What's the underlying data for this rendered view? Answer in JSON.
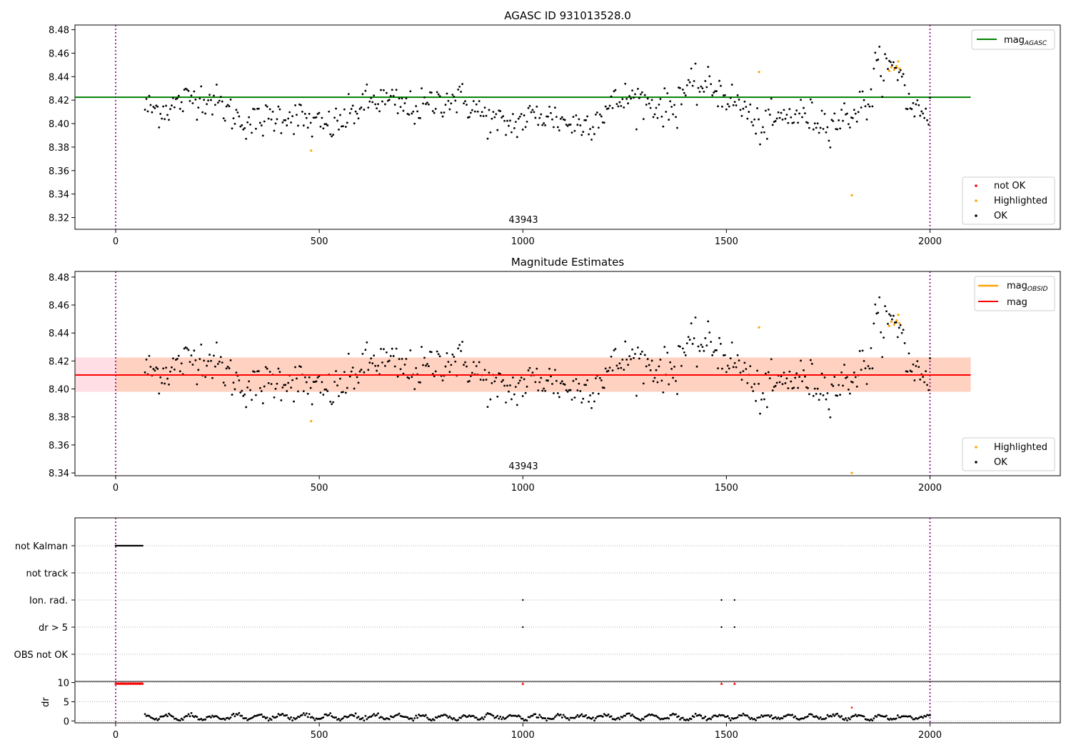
{
  "chart_data": [
    {
      "id": "panel1",
      "type": "scatter",
      "title": "AGASC ID 931013528.0",
      "xlim": [
        -100,
        2320
      ],
      "ylim": [
        8.31,
        8.484
      ],
      "xticks": [
        0,
        500,
        1000,
        1500,
        2000
      ],
      "yticks": [
        8.32,
        8.34,
        8.36,
        8.38,
        8.4,
        8.42,
        8.44,
        8.46,
        8.48
      ],
      "ytick_labels": [
        "8.32",
        "8.34",
        "8.36",
        "8.38",
        "8.40",
        "8.42",
        "8.44",
        "8.46",
        "8.48"
      ],
      "annotation": {
        "text": "43943",
        "x": 1000
      },
      "vlines": [
        0,
        2000
      ],
      "hline": {
        "y": 8.4225,
        "x_range": [
          -100,
          2100
        ],
        "color": "#008000"
      },
      "legend_upper": [
        {
          "label": "mag",
          "sub": "AGASC",
          "color": "#008000",
          "kind": "line"
        }
      ],
      "legend_lower": [
        {
          "label": "not OK",
          "color": "#ff0000",
          "kind": "dot"
        },
        {
          "label": "Highlighted",
          "color": "#ffa500",
          "kind": "dot"
        },
        {
          "label": "OK",
          "color": "#000000",
          "kind": "dot"
        }
      ],
      "series_ok": {
        "name": "OK",
        "color": "#000000",
        "x_start": 72,
        "x_end": 2000,
        "n": 560,
        "baseline": 8.41
      },
      "series_highlighted": {
        "name": "Highlighted",
        "color": "#ffa500",
        "points": [
          [
            480,
            8.377
          ],
          [
            1580,
            8.444
          ],
          [
            1808,
            8.339
          ],
          [
            1900,
            8.445
          ],
          [
            1905,
            8.448
          ],
          [
            1912,
            8.446
          ],
          [
            1918,
            8.449
          ],
          [
            1922,
            8.453
          ],
          [
            1925,
            8.447
          ]
        ]
      }
    },
    {
      "id": "panel2",
      "type": "scatter",
      "title": "Magnitude Estimates",
      "xlim": [
        -100,
        2320
      ],
      "ylim": [
        8.338,
        8.484
      ],
      "xticks": [
        0,
        500,
        1000,
        1500,
        2000
      ],
      "yticks": [
        8.34,
        8.36,
        8.38,
        8.4,
        8.42,
        8.44,
        8.46,
        8.48
      ],
      "ytick_labels": [
        "8.34",
        "8.36",
        "8.38",
        "8.40",
        "8.42",
        "8.44",
        "8.46",
        "8.48"
      ],
      "annotation": {
        "text": "43943",
        "x": 1000
      },
      "vlines": [
        0,
        2000
      ],
      "band_outer": {
        "y_range": [
          8.398,
          8.4225
        ],
        "x_range": [
          -100,
          2100
        ],
        "color": "#ffc0cb"
      },
      "band_inner": {
        "y_range": [
          8.398,
          8.4225
        ],
        "x_range": [
          -100,
          2100
        ],
        "color": "#ffc8a8"
      },
      "hline_mag": {
        "y": 8.41,
        "x_range": [
          -100,
          2100
        ],
        "color": "#ff0000"
      },
      "legend_upper": [
        {
          "label": "mag",
          "sub": "OBSID",
          "color": "#ffa500",
          "kind": "line"
        },
        {
          "label": "mag",
          "sub": "",
          "color": "#ff0000",
          "kind": "line"
        }
      ],
      "legend_lower": [
        {
          "label": "Highlighted",
          "color": "#ffa500",
          "kind": "dot"
        },
        {
          "label": "OK",
          "color": "#000000",
          "kind": "dot"
        }
      ],
      "series_ok": {
        "name": "OK",
        "color": "#000000",
        "x_start": 72,
        "x_end": 2000,
        "n": 560,
        "baseline": 8.41
      },
      "series_highlighted": {
        "name": "Highlighted",
        "color": "#ffa500",
        "points": [
          [
            480,
            8.377
          ],
          [
            1580,
            8.444
          ],
          [
            1900,
            8.445
          ],
          [
            1905,
            8.448
          ],
          [
            1912,
            8.446
          ],
          [
            1918,
            8.449
          ],
          [
            1922,
            8.453
          ],
          [
            1925,
            8.447
          ],
          [
            1808,
            8.34
          ]
        ]
      }
    },
    {
      "id": "panel3",
      "type": "scatter",
      "xlim": [
        -100,
        2320
      ],
      "categories": [
        "not Kalman",
        "not track",
        "Ion. rad.",
        "dr > 5",
        "OBS not OK"
      ],
      "vlines": [
        0,
        2000
      ],
      "flags": {
        "not Kalman": {
          "x_range": [
            0,
            68
          ]
        },
        "not track": {
          "x_points": []
        },
        "Ion. rad.": {
          "x_points": [
            1000,
            1488,
            1520
          ]
        },
        "dr > 5": {
          "x_points": [
            1000,
            1488,
            1520
          ]
        },
        "OBS not OK": {
          "x_points": []
        }
      }
    },
    {
      "id": "panel4",
      "type": "scatter",
      "ylabel": "dr",
      "xlim": [
        -100,
        2320
      ],
      "ylim": [
        -0.5,
        10.3
      ],
      "xticks": [
        0,
        500,
        1000,
        1500,
        2000
      ],
      "yticks": [
        0,
        5,
        10
      ],
      "ytick_labels": [
        "0",
        "5",
        "10"
      ],
      "vlines": [
        0,
        2000
      ],
      "red_cap_points": {
        "x_range": [
          0,
          68
        ],
        "y": 9.8,
        "extra_x": [
          1000,
          1488,
          1520
        ]
      },
      "red_single": [
        [
          1808,
          3.5
        ]
      ],
      "black_series": {
        "x_start": 72,
        "x_end": 2000,
        "n": 560,
        "baseline": 1.0
      }
    }
  ]
}
